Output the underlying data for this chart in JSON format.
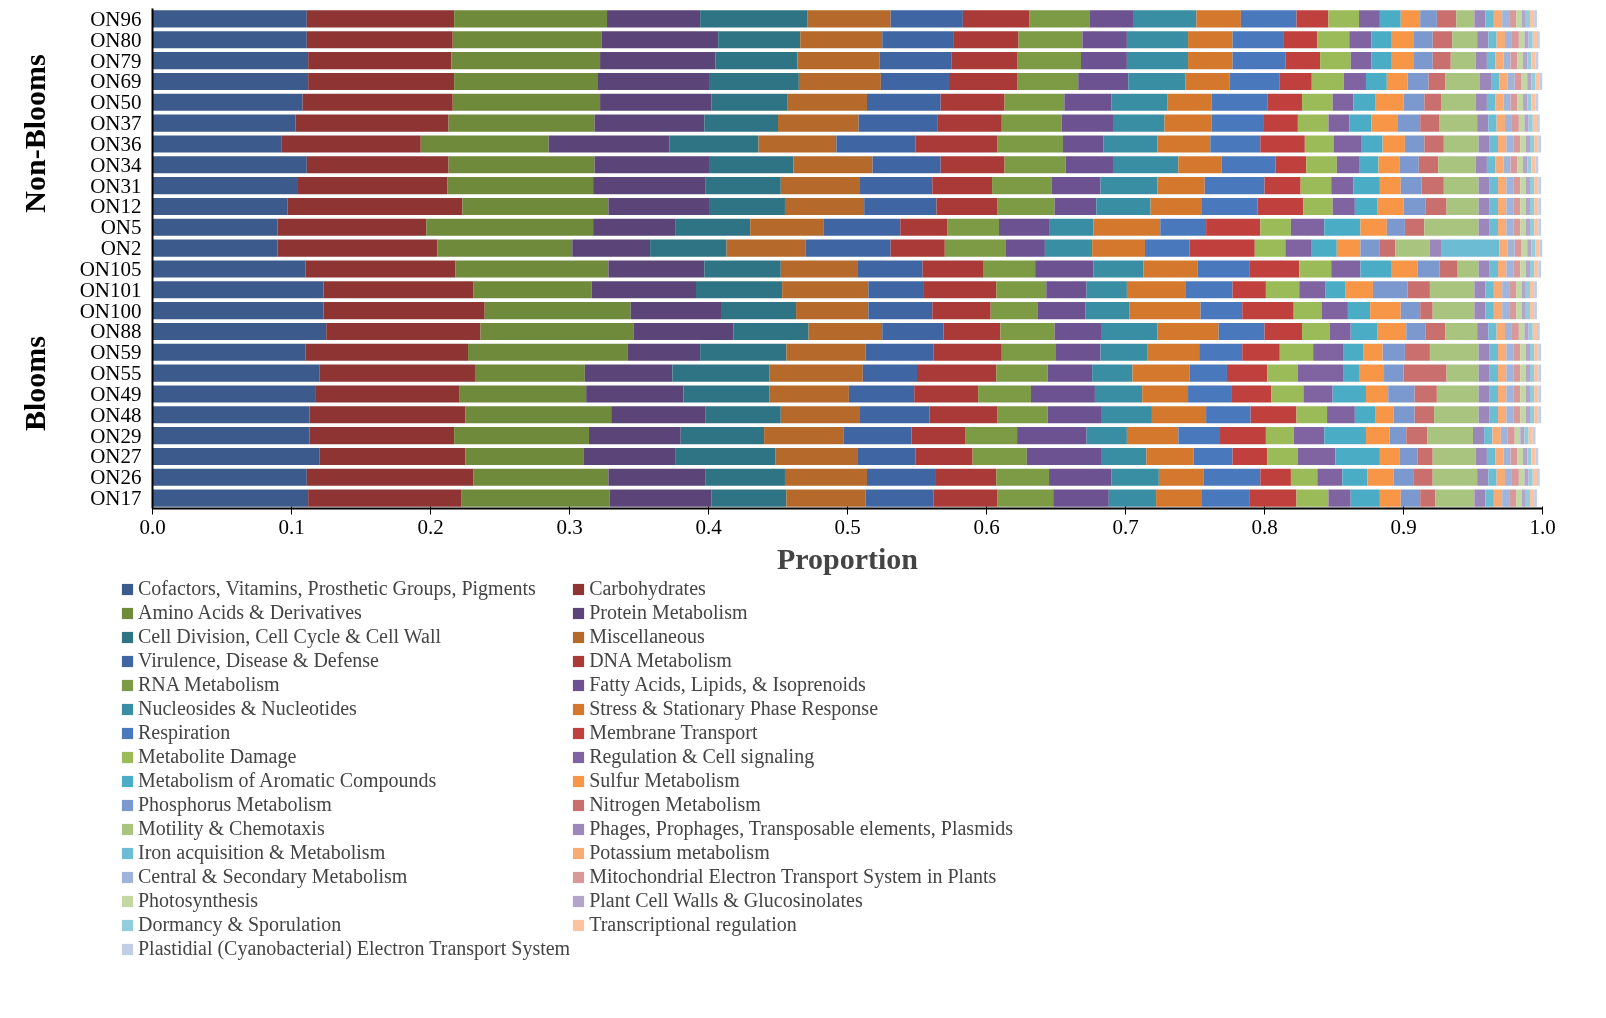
{
  "chart_data": {
    "type": "bar",
    "orientation": "horizontal",
    "stacked": true,
    "xlabel": "Proportion",
    "legend": "bottom",
    "annotations": [
      "Non-Blooms",
      "Blooms"
    ],
    "categories": [
      "ON96",
      "ON80",
      "ON79",
      "ON69",
      "ON50",
      "ON37",
      "ON36",
      "ON34",
      "ON31",
      "ON12",
      "ON5",
      "ON2",
      "ON105",
      "ON101",
      "ON100",
      "ON88",
      "ON59",
      "ON55",
      "ON49",
      "ON48",
      "ON29",
      "ON27",
      "ON26",
      "ON17"
    ],
    "xlim": [
      0,
      1
    ],
    "xticks": [
      {
        "value": 0,
        "label": "0.0"
      },
      0.1,
      0.2,
      0.3,
      0.4,
      0.5,
      0.6,
      0.7,
      0.8,
      0.9,
      {
        "value": 1,
        "label": "1.0"
      }
    ],
    "series": [
      {
        "name": "Cofactors, Vitamins, Prosthetic Groups, Pigments",
        "color": "#3c5a8c",
        "values": [
          0.111,
          0.111,
          0.112,
          0.112,
          0.108,
          0.103,
          0.093,
          0.111,
          0.104,
          0.097,
          0.09,
          0.09,
          0.11,
          0.123,
          0.123,
          0.125,
          0.11,
          0.12,
          0.117,
          0.113,
          0.113,
          0.12,
          0.111,
          0.112
        ]
      },
      {
        "name": "Carbohydrates",
        "color": "#8e3533",
        "values": [
          0.106,
          0.105,
          0.103,
          0.105,
          0.108,
          0.11,
          0.1,
          0.102,
          0.108,
          0.126,
          0.107,
          0.115,
          0.108,
          0.108,
          0.116,
          0.111,
          0.117,
          0.112,
          0.104,
          0.112,
          0.104,
          0.105,
          0.12,
          0.11
        ]
      },
      {
        "name": "Amino Acids & Derivatives",
        "color": "#6f8a3a",
        "values": [
          0.11,
          0.107,
          0.107,
          0.103,
          0.106,
          0.105,
          0.092,
          0.105,
          0.105,
          0.105,
          0.12,
          0.097,
          0.11,
          0.085,
          0.105,
          0.11,
          0.115,
          0.079,
          0.091,
          0.105,
          0.097,
          0.085,
          0.097,
          0.107
        ]
      },
      {
        "name": "Protein Metabolism",
        "color": "#5b4477",
        "values": [
          0.067,
          0.084,
          0.083,
          0.081,
          0.08,
          0.079,
          0.087,
          0.083,
          0.081,
          0.073,
          0.059,
          0.056,
          0.069,
          0.075,
          0.065,
          0.072,
          0.052,
          0.063,
          0.07,
          0.068,
          0.066,
          0.066,
          0.07,
          0.073
        ]
      },
      {
        "name": "Cell Division, Cell Cycle & Cell Wall",
        "color": "#2f7484",
        "values": [
          0.077,
          0.059,
          0.059,
          0.064,
          0.055,
          0.053,
          0.064,
          0.06,
          0.054,
          0.054,
          0.054,
          0.055,
          0.055,
          0.062,
          0.054,
          0.054,
          0.062,
          0.07,
          0.062,
          0.054,
          0.06,
          0.072,
          0.057,
          0.054
        ]
      },
      {
        "name": "Miscellaneous",
        "color": "#b5692a",
        "values": [
          0.06,
          0.059,
          0.059,
          0.059,
          0.057,
          0.058,
          0.056,
          0.057,
          0.057,
          0.057,
          0.053,
          0.057,
          0.055,
          0.062,
          0.052,
          0.053,
          0.057,
          0.067,
          0.057,
          0.057,
          0.057,
          0.059,
          0.059,
          0.057
        ]
      },
      {
        "name": "Virulence, Disease & Defense",
        "color": "#3f66a3",
        "values": [
          0.052,
          0.051,
          0.052,
          0.049,
          0.053,
          0.057,
          0.057,
          0.049,
          0.052,
          0.052,
          0.055,
          0.061,
          0.047,
          0.04,
          0.046,
          0.044,
          0.049,
          0.039,
          0.047,
          0.05,
          0.049,
          0.042,
          0.049,
          0.049
        ]
      },
      {
        "name": "DNA Metabolism",
        "color": "#a93a37",
        "values": [
          0.048,
          0.047,
          0.047,
          0.049,
          0.046,
          0.046,
          0.059,
          0.046,
          0.043,
          0.044,
          0.034,
          0.039,
          0.044,
          0.052,
          0.042,
          0.041,
          0.049,
          0.057,
          0.046,
          0.049,
          0.039,
          0.041,
          0.044,
          0.046
        ]
      },
      {
        "name": "RNA Metabolism",
        "color": "#7d9a45",
        "values": [
          0.043,
          0.046,
          0.046,
          0.044,
          0.043,
          0.043,
          0.047,
          0.044,
          0.043,
          0.041,
          0.037,
          0.044,
          0.037,
          0.036,
          0.034,
          0.039,
          0.039,
          0.037,
          0.038,
          0.036,
          0.037,
          0.039,
          0.038,
          0.04
        ]
      },
      {
        "name": "Fatty Acids, Lipids, & Isoprenoids",
        "color": "#6c5290",
        "values": [
          0.032,
          0.032,
          0.033,
          0.036,
          0.034,
          0.037,
          0.029,
          0.034,
          0.035,
          0.03,
          0.036,
          0.028,
          0.042,
          0.029,
          0.034,
          0.034,
          0.032,
          0.032,
          0.046,
          0.039,
          0.05,
          0.054,
          0.045,
          0.04
        ]
      },
      {
        "name": "Nucleosides & Nucleotides",
        "color": "#3a8ea3",
        "values": [
          0.045,
          0.044,
          0.044,
          0.041,
          0.04,
          0.037,
          0.039,
          0.047,
          0.041,
          0.039,
          0.032,
          0.034,
          0.036,
          0.029,
          0.032,
          0.04,
          0.034,
          0.029,
          0.034,
          0.036,
          0.029,
          0.032,
          0.034,
          0.034
        ]
      },
      {
        "name": "Stress & Stationary Phase Response",
        "color": "#d4782e",
        "values": [
          0.032,
          0.032,
          0.032,
          0.032,
          0.032,
          0.034,
          0.038,
          0.031,
          0.034,
          0.037,
          0.048,
          0.038,
          0.039,
          0.042,
          0.051,
          0.044,
          0.037,
          0.041,
          0.033,
          0.039,
          0.037,
          0.034,
          0.032,
          0.033
        ]
      },
      {
        "name": "Respiration",
        "color": "#4a78bd",
        "values": [
          0.04,
          0.037,
          0.038,
          0.036,
          0.04,
          0.037,
          0.036,
          0.039,
          0.043,
          0.04,
          0.033,
          0.032,
          0.037,
          0.034,
          0.03,
          0.033,
          0.031,
          0.027,
          0.031,
          0.032,
          0.03,
          0.028,
          0.041,
          0.034
        ]
      },
      {
        "name": "Membrane Transport",
        "color": "#c0403d",
        "values": [
          0.023,
          0.024,
          0.025,
          0.023,
          0.025,
          0.025,
          0.032,
          0.022,
          0.026,
          0.033,
          0.039,
          0.047,
          0.036,
          0.024,
          0.037,
          0.027,
          0.027,
          0.029,
          0.029,
          0.033,
          0.033,
          0.025,
          0.022,
          0.034
        ]
      },
      {
        "name": "Metabolite Damage",
        "color": "#9bbb59",
        "values": [
          0.022,
          0.023,
          0.022,
          0.023,
          0.022,
          0.022,
          0.021,
          0.022,
          0.022,
          0.021,
          0.022,
          0.022,
          0.023,
          0.024,
          0.02,
          0.02,
          0.024,
          0.022,
          0.023,
          0.022,
          0.02,
          0.022,
          0.019,
          0.023
        ]
      },
      {
        "name": "Regulation & Cell signaling",
        "color": "#8064a2",
        "values": [
          0.015,
          0.016,
          0.015,
          0.016,
          0.015,
          0.015,
          0.02,
          0.016,
          0.016,
          0.016,
          0.024,
          0.019,
          0.021,
          0.019,
          0.019,
          0.015,
          0.022,
          0.033,
          0.021,
          0.02,
          0.022,
          0.027,
          0.018,
          0.016
        ]
      },
      {
        "name": "Metabolism of Aromatic Compounds",
        "color": "#4bacc6",
        "values": [
          0.015,
          0.014,
          0.014,
          0.015,
          0.016,
          0.016,
          0.015,
          0.014,
          0.019,
          0.016,
          0.026,
          0.018,
          0.022,
          0.014,
          0.016,
          0.019,
          0.014,
          0.011,
          0.024,
          0.015,
          0.03,
          0.032,
          0.018,
          0.021
        ]
      },
      {
        "name": "Sulfur Metabolism",
        "color": "#f79646",
        "values": [
          0.014,
          0.016,
          0.016,
          0.015,
          0.02,
          0.019,
          0.016,
          0.015,
          0.015,
          0.019,
          0.019,
          0.017,
          0.019,
          0.02,
          0.022,
          0.021,
          0.014,
          0.018,
          0.016,
          0.013,
          0.017,
          0.014,
          0.019,
          0.015
        ]
      },
      {
        "name": "Phosphorus Metabolism",
        "color": "#7b99cf",
        "values": [
          0.012,
          0.014,
          0.014,
          0.015,
          0.015,
          0.016,
          0.014,
          0.014,
          0.015,
          0.016,
          0.013,
          0.014,
          0.016,
          0.025,
          0.014,
          0.014,
          0.016,
          0.014,
          0.019,
          0.015,
          0.012,
          0.013,
          0.014,
          0.014
        ]
      },
      {
        "name": "Nitrogen Metabolism",
        "color": "#c9706e",
        "values": [
          0.014,
          0.014,
          0.013,
          0.012,
          0.012,
          0.014,
          0.014,
          0.014,
          0.016,
          0.015,
          0.014,
          0.011,
          0.013,
          0.016,
          0.009,
          0.014,
          0.018,
          0.031,
          0.016,
          0.014,
          0.015,
          0.011,
          0.014,
          0.011
        ]
      },
      {
        "name": "Motility & Chemotaxis",
        "color": "#a9c47f",
        "values": [
          0.013,
          0.018,
          0.018,
          0.025,
          0.025,
          0.027,
          0.025,
          0.027,
          0.025,
          0.023,
          0.039,
          0.025,
          0.015,
          0.032,
          0.03,
          0.023,
          0.035,
          0.023,
          0.03,
          0.032,
          0.033,
          0.031,
          0.032,
          0.028
        ]
      },
      {
        "name": "Phages, Prophages, Transposable elements, Plasmids",
        "color": "#9c87bb",
        "values": [
          0.008,
          0.008,
          0.008,
          0.008,
          0.008,
          0.008,
          0.008,
          0.008,
          0.008,
          0.008,
          0.008,
          0.008,
          0.008,
          0.008,
          0.008,
          0.008,
          0.008,
          0.008,
          0.008,
          0.008,
          0.008,
          0.008,
          0.008,
          0.008
        ]
      },
      {
        "name": "Iron acquisition & Metabolism",
        "color": "#6cbcd3",
        "values": [
          0.006,
          0.006,
          0.006,
          0.006,
          0.006,
          0.006,
          0.006,
          0.006,
          0.006,
          0.006,
          0.006,
          0.042,
          0.006,
          0.006,
          0.006,
          0.006,
          0.006,
          0.006,
          0.006,
          0.006,
          0.006,
          0.006,
          0.006,
          0.006
        ]
      },
      {
        "name": "Potassium metabolism",
        "color": "#f9ab74",
        "values": [
          0.006,
          0.006,
          0.006,
          0.006,
          0.006,
          0.006,
          0.006,
          0.006,
          0.006,
          0.006,
          0.006,
          0.006,
          0.006,
          0.006,
          0.006,
          0.006,
          0.006,
          0.006,
          0.006,
          0.006,
          0.006,
          0.006,
          0.006,
          0.006
        ]
      },
      {
        "name": "Central & Secondary Metabolism",
        "color": "#9eb4db",
        "values": [
          0.005,
          0.005,
          0.005,
          0.005,
          0.005,
          0.005,
          0.005,
          0.005,
          0.005,
          0.005,
          0.005,
          0.005,
          0.005,
          0.005,
          0.005,
          0.005,
          0.005,
          0.005,
          0.005,
          0.005,
          0.005,
          0.005,
          0.005,
          0.005
        ]
      },
      {
        "name": "Mitochondrial Electron Transport System in Plants",
        "color": "#d9999a",
        "values": [
          0.005,
          0.005,
          0.005,
          0.005,
          0.005,
          0.005,
          0.005,
          0.005,
          0.005,
          0.005,
          0.005,
          0.005,
          0.005,
          0.005,
          0.005,
          0.005,
          0.005,
          0.005,
          0.005,
          0.005,
          0.005,
          0.005,
          0.005,
          0.005
        ]
      },
      {
        "name": "Photosynthesis",
        "color": "#c2d7a1",
        "values": [
          0.004,
          0.004,
          0.004,
          0.004,
          0.004,
          0.004,
          0.004,
          0.004,
          0.004,
          0.004,
          0.004,
          0.004,
          0.004,
          0.004,
          0.004,
          0.004,
          0.004,
          0.004,
          0.004,
          0.004,
          0.004,
          0.004,
          0.004,
          0.004
        ]
      },
      {
        "name": "Plant Cell Walls & Glucosinolates",
        "color": "#b3a5c9",
        "values": [
          0.003,
          0.003,
          0.003,
          0.003,
          0.003,
          0.003,
          0.003,
          0.003,
          0.003,
          0.003,
          0.003,
          0.003,
          0.003,
          0.003,
          0.003,
          0.003,
          0.003,
          0.003,
          0.003,
          0.003,
          0.003,
          0.003,
          0.003,
          0.003
        ]
      },
      {
        "name": "Dormancy & Sporulation",
        "color": "#93cddc",
        "values": [
          0.003,
          0.003,
          0.003,
          0.003,
          0.003,
          0.003,
          0.003,
          0.003,
          0.003,
          0.003,
          0.003,
          0.003,
          0.003,
          0.003,
          0.003,
          0.003,
          0.003,
          0.003,
          0.003,
          0.003,
          0.003,
          0.003,
          0.003,
          0.003
        ]
      },
      {
        "name": "Transcriptional regulation",
        "color": "#fbc3a0",
        "values": [
          0.003,
          0.003,
          0.003,
          0.003,
          0.003,
          0.003,
          0.003,
          0.003,
          0.003,
          0.003,
          0.003,
          0.003,
          0.003,
          0.003,
          0.003,
          0.003,
          0.003,
          0.003,
          0.003,
          0.003,
          0.003,
          0.003,
          0.003,
          0.003
        ]
      },
      {
        "name": "Plastidial (Cyanobacterial) Electron Transport System",
        "color": "#c2cde6",
        "values": [
          0.002,
          0.002,
          0.002,
          0.002,
          0.002,
          0.002,
          0.002,
          0.002,
          0.002,
          0.002,
          0.002,
          0.002,
          0.002,
          0.002,
          0.002,
          0.002,
          0.002,
          0.002,
          0.002,
          0.002,
          0.002,
          0.002,
          0.002,
          0.002
        ]
      }
    ]
  }
}
